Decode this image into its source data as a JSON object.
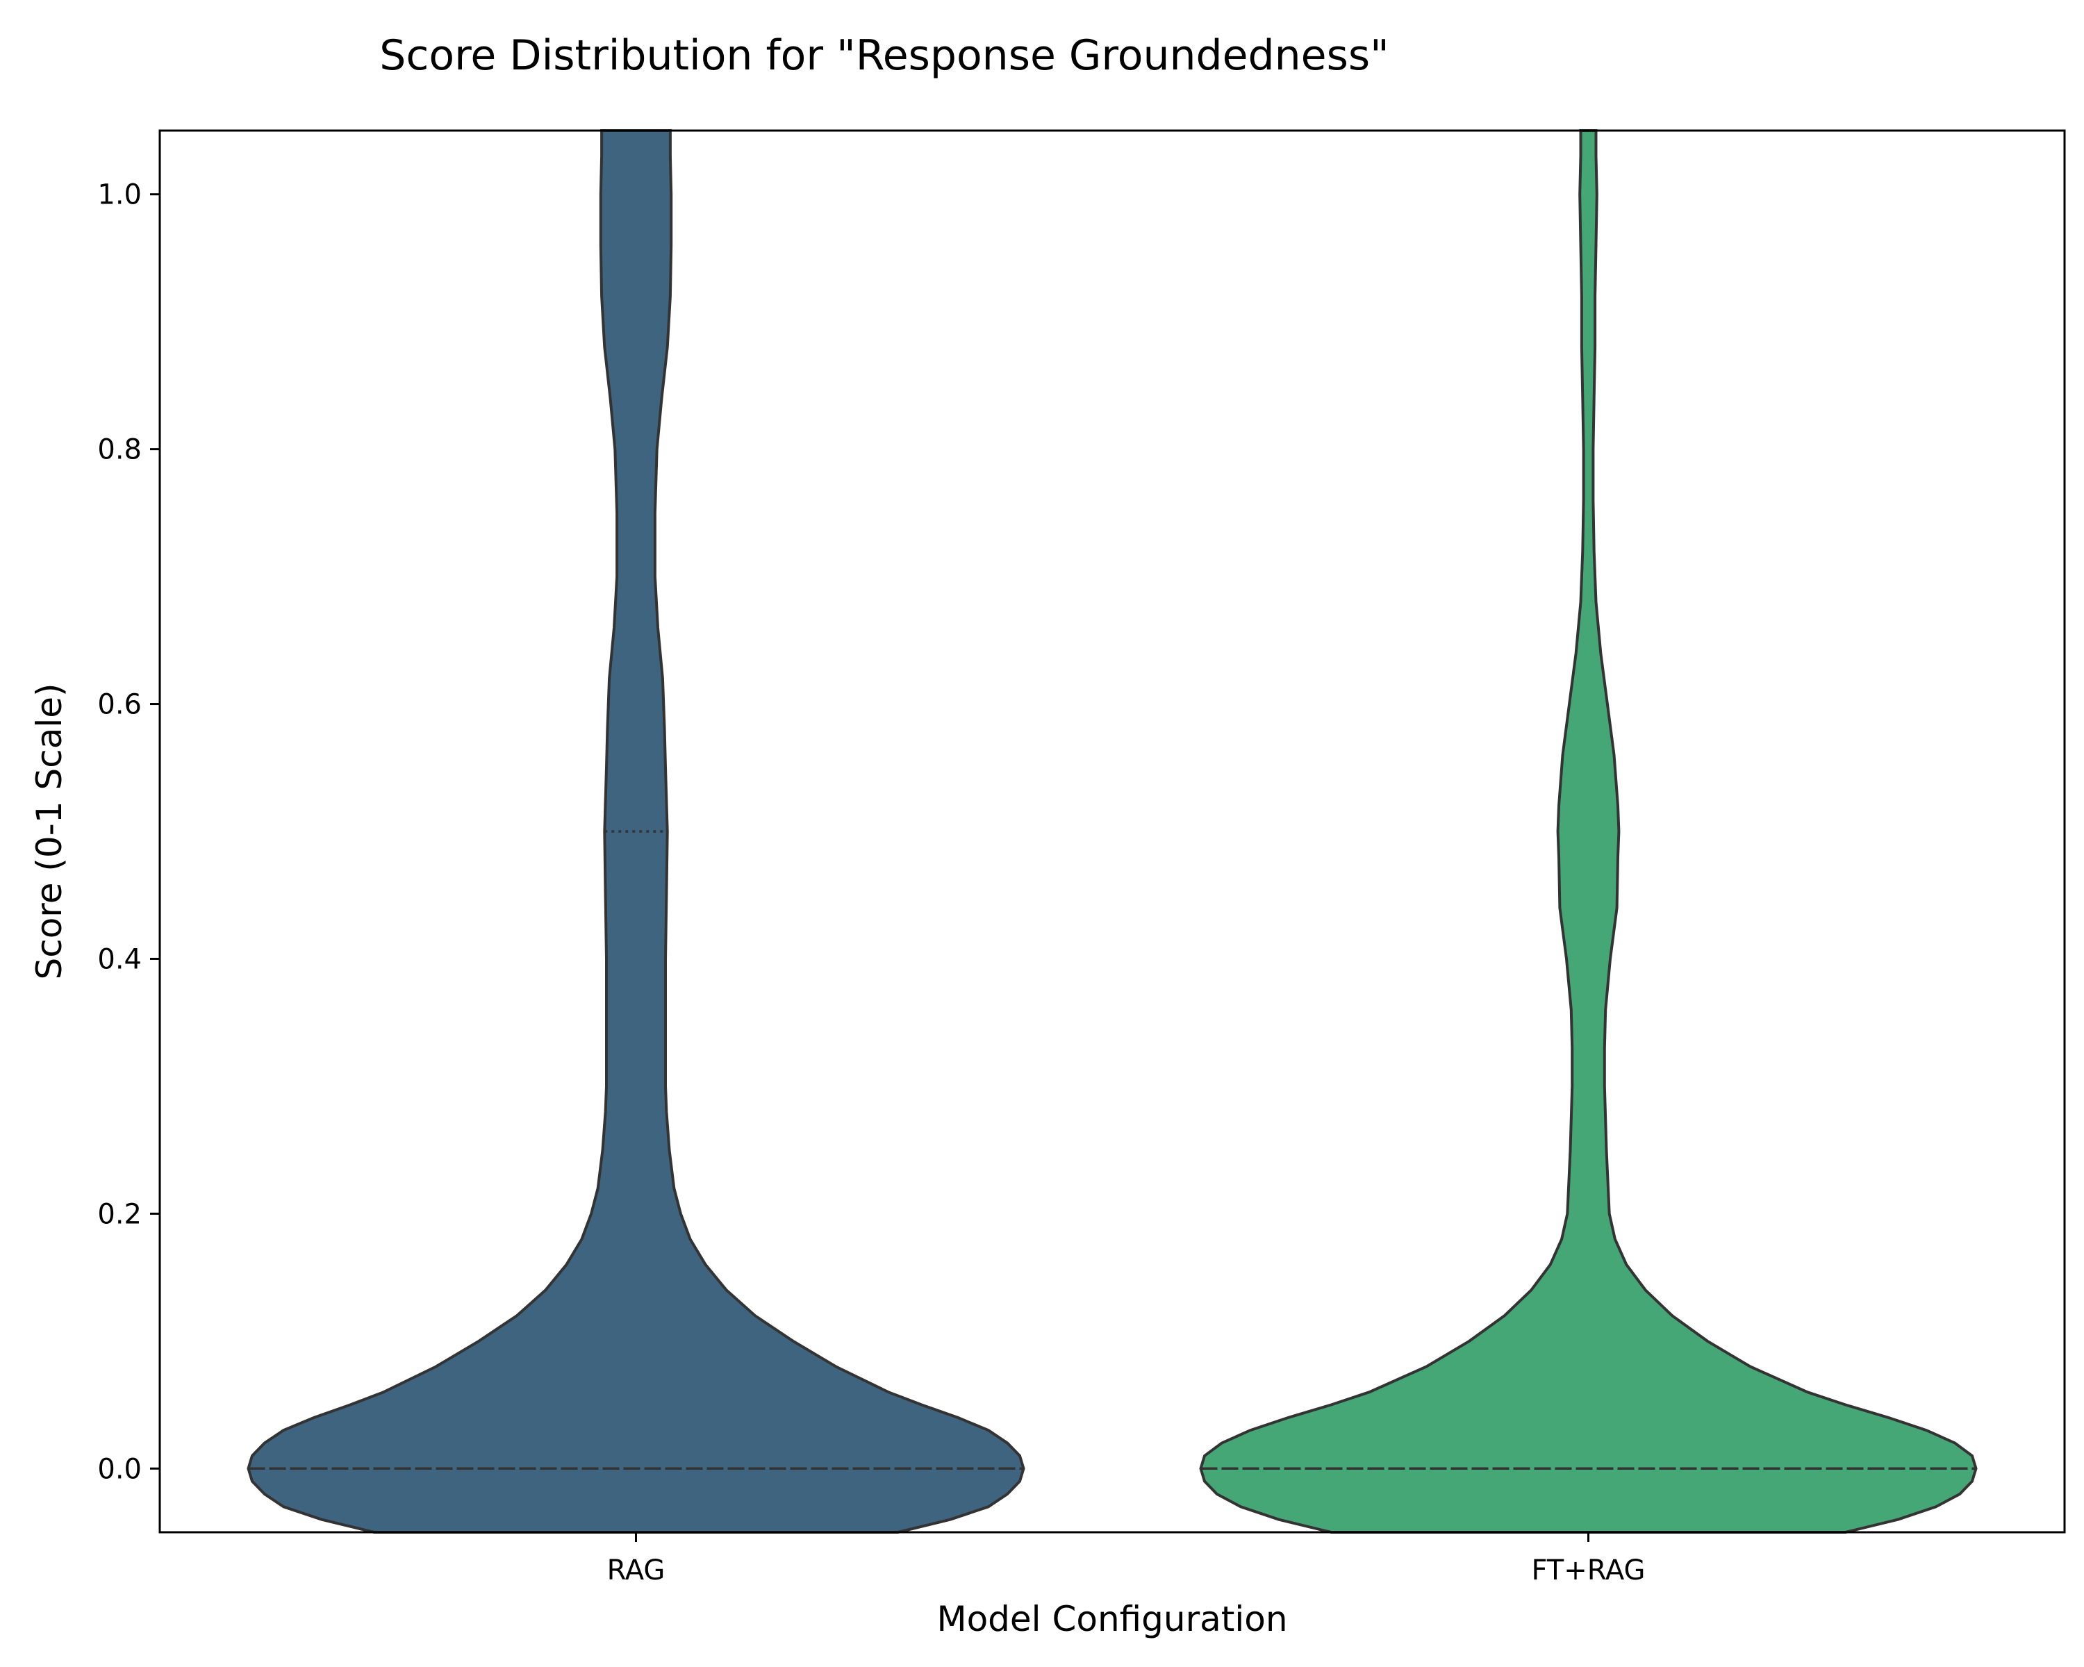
{
  "chart_data": {
    "type": "violin",
    "title": "Score Distribution for \"Response Groundedness\"",
    "xlabel": "Model Configuration",
    "ylabel": "Score (0-1 Scale)",
    "ylim": [
      -0.05,
      1.05
    ],
    "yticks": [
      0.0,
      0.2,
      0.4,
      0.6,
      0.8,
      1.0
    ],
    "ytick_labels": [
      "0.0",
      "0.2",
      "0.4",
      "0.6",
      "0.8",
      "1.0"
    ],
    "categories": [
      "RAG",
      "FT+RAG"
    ],
    "grid": false,
    "series": [
      {
        "category": "RAG",
        "color": "#3e6480",
        "median": 0.0,
        "q1": 0.0,
        "q3": 0.5,
        "density_halfwidth": [
          [
            -0.05,
            0.275
          ],
          [
            -0.04,
            0.33
          ],
          [
            -0.03,
            0.37
          ],
          [
            -0.02,
            0.39
          ],
          [
            -0.01,
            0.403
          ],
          [
            0.0,
            0.407
          ],
          [
            0.01,
            0.403
          ],
          [
            0.02,
            0.39
          ],
          [
            0.03,
            0.37
          ],
          [
            0.04,
            0.338
          ],
          [
            0.05,
            0.3
          ],
          [
            0.06,
            0.265
          ],
          [
            0.08,
            0.21
          ],
          [
            0.1,
            0.165
          ],
          [
            0.12,
            0.125
          ],
          [
            0.14,
            0.095
          ],
          [
            0.16,
            0.073
          ],
          [
            0.18,
            0.057
          ],
          [
            0.2,
            0.047
          ],
          [
            0.22,
            0.04
          ],
          [
            0.25,
            0.035
          ],
          [
            0.28,
            0.032
          ],
          [
            0.3,
            0.031
          ],
          [
            0.35,
            0.031
          ],
          [
            0.38,
            0.031
          ],
          [
            0.4,
            0.031
          ],
          [
            0.45,
            0.032
          ],
          [
            0.5,
            0.033
          ],
          [
            0.55,
            0.031
          ],
          [
            0.58,
            0.03
          ],
          [
            0.62,
            0.028
          ],
          [
            0.66,
            0.023
          ],
          [
            0.7,
            0.02
          ],
          [
            0.75,
            0.02
          ],
          [
            0.8,
            0.022
          ],
          [
            0.84,
            0.027
          ],
          [
            0.88,
            0.033
          ],
          [
            0.92,
            0.036
          ],
          [
            0.96,
            0.037
          ],
          [
            1.0,
            0.037
          ],
          [
            1.03,
            0.036
          ],
          [
            1.05,
            0.036
          ]
        ]
      },
      {
        "category": "FT+RAG",
        "color": "#45a776",
        "median": 0.0,
        "q1": 0.0,
        "q3": 0.0,
        "density_halfwidth": [
          [
            -0.05,
            0.27
          ],
          [
            -0.04,
            0.325
          ],
          [
            -0.03,
            0.365
          ],
          [
            -0.02,
            0.39
          ],
          [
            -0.01,
            0.403
          ],
          [
            0.0,
            0.407
          ],
          [
            0.01,
            0.403
          ],
          [
            0.02,
            0.385
          ],
          [
            0.03,
            0.355
          ],
          [
            0.04,
            0.315
          ],
          [
            0.05,
            0.27
          ],
          [
            0.06,
            0.23
          ],
          [
            0.08,
            0.17
          ],
          [
            0.1,
            0.125
          ],
          [
            0.12,
            0.088
          ],
          [
            0.14,
            0.06
          ],
          [
            0.16,
            0.04
          ],
          [
            0.18,
            0.028
          ],
          [
            0.2,
            0.022
          ],
          [
            0.25,
            0.019
          ],
          [
            0.3,
            0.017
          ],
          [
            0.33,
            0.017
          ],
          [
            0.36,
            0.018
          ],
          [
            0.4,
            0.023
          ],
          [
            0.44,
            0.03
          ],
          [
            0.48,
            0.031
          ],
          [
            0.5,
            0.032
          ],
          [
            0.52,
            0.031
          ],
          [
            0.56,
            0.027
          ],
          [
            0.6,
            0.02
          ],
          [
            0.64,
            0.013
          ],
          [
            0.68,
            0.008
          ],
          [
            0.72,
            0.006
          ],
          [
            0.76,
            0.005
          ],
          [
            0.8,
            0.005
          ],
          [
            0.84,
            0.006
          ],
          [
            0.88,
            0.007
          ],
          [
            0.92,
            0.007
          ],
          [
            0.96,
            0.008
          ],
          [
            1.0,
            0.009
          ],
          [
            1.03,
            0.008
          ],
          [
            1.05,
            0.008
          ]
        ]
      }
    ]
  }
}
